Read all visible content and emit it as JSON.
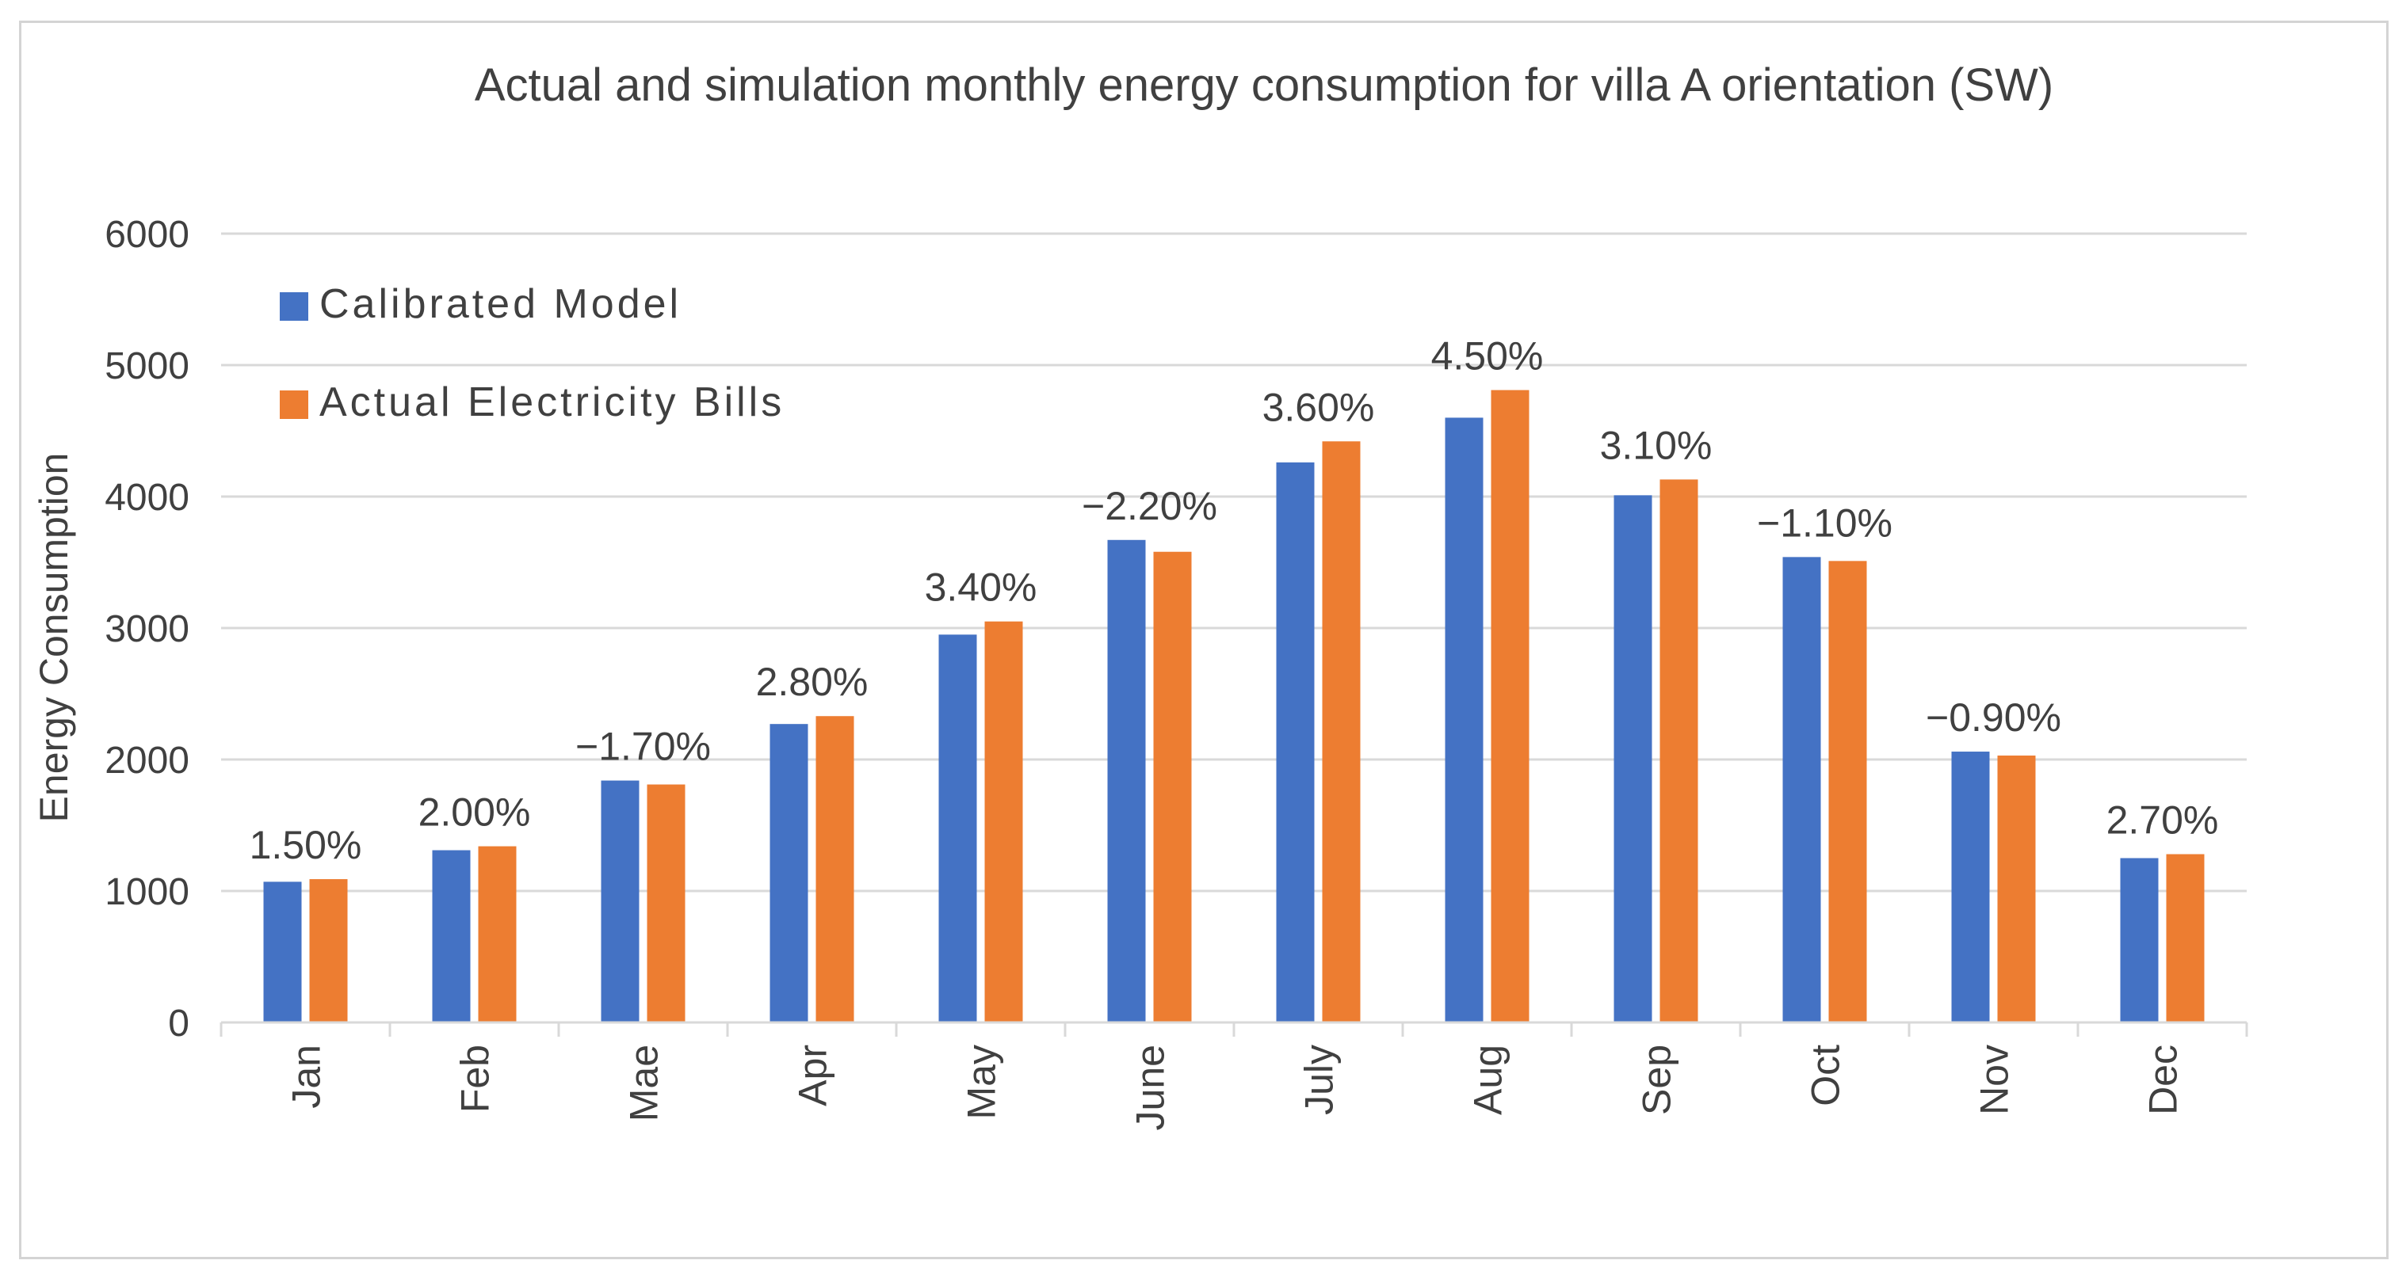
{
  "chart_data": {
    "type": "bar",
    "title": "Actual and simulation monthly energy consumption for villa A orientation (SW)",
    "xlabel": "",
    "ylabel": "Energy Consumption",
    "ylim": [
      0,
      6000
    ],
    "yticks": [
      0,
      1000,
      2000,
      3000,
      4000,
      5000,
      6000
    ],
    "grid": true,
    "legend_position": "top-left",
    "categories": [
      "Jan",
      "Feb",
      "Mae",
      "Apr",
      "May",
      "June",
      "July",
      "Aug",
      "Sep",
      "Oct",
      "Nov",
      "Dec"
    ],
    "series": [
      {
        "name": "Calibrated Model",
        "color": "#4472C4",
        "values": [
          1070,
          1310,
          1840,
          2270,
          2950,
          3670,
          4260,
          4600,
          4010,
          3540,
          2060,
          1250
        ]
      },
      {
        "name": "Actual Electricity Bills",
        "color": "#ED7D31",
        "values": [
          1090,
          1340,
          1810,
          2330,
          3050,
          3580,
          4420,
          4810,
          4130,
          3510,
          2030,
          1280
        ]
      }
    ],
    "annotations": [
      "1.50%",
      "2.00%",
      "−1.70%",
      "2.80%",
      "3.40%",
      "−2.20%",
      "3.60%",
      "4.50%",
      "3.10%",
      "−1.10%",
      "−0.90%",
      "2.70%"
    ]
  }
}
